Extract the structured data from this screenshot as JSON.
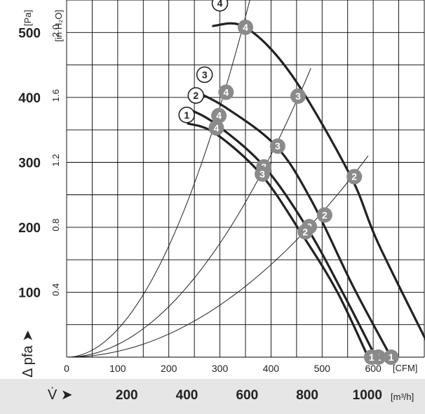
{
  "chart_data": {
    "type": "line",
    "x_unit": "[CFM]",
    "x2_unit": "[m³/h]",
    "y_unit": "[Pa]",
    "y2_unit": "[in H₂O]",
    "x_symbol": "V̇ ➤",
    "y_symbol": "Δ pfa ➤",
    "x_ticks": [
      0,
      100,
      200,
      300,
      400,
      500,
      600
    ],
    "x2_ticks": [
      200,
      400,
      600,
      800,
      1000
    ],
    "y_ticks": [
      100,
      200,
      300,
      400,
      500
    ],
    "y2_ticks": [
      "0.4",
      "0.8",
      "1.2",
      "1.6",
      "2.0"
    ],
    "xlim": [
      0,
      700
    ],
    "ylim": [
      0,
      550
    ],
    "grid": true,
    "series": [
      {
        "name": "1",
        "points": [
          [
            236,
            360
          ],
          [
            290,
            345
          ],
          [
            380,
            282
          ],
          [
            460,
            190
          ],
          [
            530,
            100
          ],
          [
            590,
            0
          ]
        ]
      },
      {
        "name": "2",
        "points": [
          [
            236,
            383
          ],
          [
            290,
            360
          ],
          [
            385,
            295
          ],
          [
            470,
            200
          ],
          [
            540,
            100
          ],
          [
            605,
            0
          ]
        ]
      },
      {
        "name": "3",
        "points": [
          [
            250,
            410
          ],
          [
            310,
            385
          ],
          [
            410,
            325
          ],
          [
            480,
            240
          ],
          [
            560,
            110
          ],
          [
            635,
            0
          ]
        ]
      },
      {
        "name": "4",
        "points": [
          [
            285,
            510
          ],
          [
            350,
            508
          ],
          [
            440,
            435
          ],
          [
            555,
            280
          ],
          [
            610,
            175
          ],
          [
            720,
            0
          ]
        ]
      }
    ],
    "resistance_curves": [
      {
        "end": [
          365,
          570
        ]
      },
      {
        "end": [
          478,
          445
        ]
      },
      {
        "end": [
          590,
          310
        ]
      }
    ],
    "operating_points": [
      {
        "label": "4",
        "x": 350,
        "y": 508
      },
      {
        "label": "4",
        "x": 312,
        "y": 408
      },
      {
        "label": "4",
        "x": 298,
        "y": 372
      },
      {
        "label": "4",
        "x": 293,
        "y": 353
      },
      {
        "label": "3",
        "x": 453,
        "y": 402
      },
      {
        "label": "3",
        "x": 413,
        "y": 325
      },
      {
        "label": "3",
        "x": 386,
        "y": 293
      },
      {
        "label": "3",
        "x": 383,
        "y": 282
      },
      {
        "label": "2",
        "x": 563,
        "y": 278
      },
      {
        "label": "2",
        "x": 505,
        "y": 219
      },
      {
        "label": "2",
        "x": 475,
        "y": 201
      },
      {
        "label": "2",
        "x": 467,
        "y": 193
      },
      {
        "label": "1",
        "x": 720,
        "y": 0
      },
      {
        "label": "1",
        "x": 635,
        "y": 0
      },
      {
        "label": "1",
        "x": 610,
        "y": 0
      },
      {
        "label": "1",
        "x": 597,
        "y": 0
      }
    ],
    "curve_labels": [
      {
        "label": "4",
        "x": 300,
        "y": 545
      },
      {
        "label": "3",
        "x": 270,
        "y": 435
      },
      {
        "label": "2",
        "x": 253,
        "y": 403
      },
      {
        "label": "1",
        "x": 235,
        "y": 373
      }
    ]
  }
}
